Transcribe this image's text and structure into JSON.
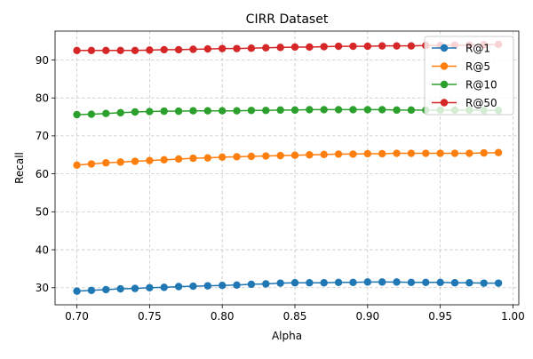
{
  "chart_data": {
    "type": "line",
    "title": "CIRR Dataset",
    "xlabel": "Alpha",
    "ylabel": "Recall",
    "xlim": [
      0.685,
      1.004
    ],
    "ylim": [
      25.5,
      97.6
    ],
    "xticks": [
      0.7,
      0.75,
      0.8,
      0.85,
      0.9,
      0.95,
      1.0
    ],
    "xtick_labels": [
      "0.70",
      "0.75",
      "0.80",
      "0.85",
      "0.90",
      "0.95",
      "1.00"
    ],
    "yticks": [
      30,
      40,
      50,
      60,
      70,
      80,
      90
    ],
    "ytick_labels": [
      "30",
      "40",
      "50",
      "60",
      "70",
      "80",
      "90"
    ],
    "grid": true,
    "legend_position": "upper-right",
    "x": [
      0.7,
      0.71,
      0.72,
      0.73,
      0.74,
      0.75,
      0.76,
      0.77,
      0.78,
      0.79,
      0.8,
      0.81,
      0.82,
      0.83,
      0.84,
      0.85,
      0.86,
      0.87,
      0.88,
      0.89,
      0.9,
      0.91,
      0.92,
      0.93,
      0.94,
      0.95,
      0.96,
      0.97,
      0.98,
      0.99
    ],
    "series": [
      {
        "name": "R@1",
        "color": "#1f77b4",
        "values": [
          29.1,
          29.3,
          29.5,
          29.7,
          29.8,
          30.0,
          30.1,
          30.3,
          30.4,
          30.5,
          30.6,
          30.7,
          30.9,
          31.0,
          31.2,
          31.3,
          31.3,
          31.3,
          31.4,
          31.4,
          31.5,
          31.5,
          31.5,
          31.4,
          31.4,
          31.4,
          31.3,
          31.3,
          31.2,
          31.2
        ]
      },
      {
        "name": "R@5",
        "color": "#ff7f0e",
        "values": [
          62.3,
          62.6,
          62.9,
          63.1,
          63.3,
          63.5,
          63.7,
          63.9,
          64.1,
          64.2,
          64.4,
          64.5,
          64.6,
          64.7,
          64.8,
          64.9,
          65.0,
          65.1,
          65.2,
          65.2,
          65.3,
          65.3,
          65.4,
          65.4,
          65.4,
          65.4,
          65.4,
          65.4,
          65.5,
          65.6
        ]
      },
      {
        "name": "R@10",
        "color": "#2ca02c",
        "values": [
          75.6,
          75.7,
          75.9,
          76.1,
          76.3,
          76.4,
          76.5,
          76.5,
          76.6,
          76.6,
          76.6,
          76.6,
          76.7,
          76.7,
          76.8,
          76.8,
          76.9,
          76.9,
          76.9,
          76.9,
          76.9,
          76.9,
          76.8,
          76.8,
          76.8,
          76.8,
          76.8,
          76.8,
          76.7,
          76.7
        ]
      },
      {
        "name": "R@50",
        "color": "#d62728",
        "values": [
          92.5,
          92.5,
          92.5,
          92.5,
          92.5,
          92.6,
          92.7,
          92.7,
          92.8,
          92.9,
          93.0,
          93.0,
          93.1,
          93.2,
          93.3,
          93.4,
          93.4,
          93.5,
          93.6,
          93.6,
          93.6,
          93.7,
          93.7,
          93.7,
          93.8,
          93.8,
          93.9,
          93.9,
          94.0,
          94.1
        ]
      }
    ]
  }
}
